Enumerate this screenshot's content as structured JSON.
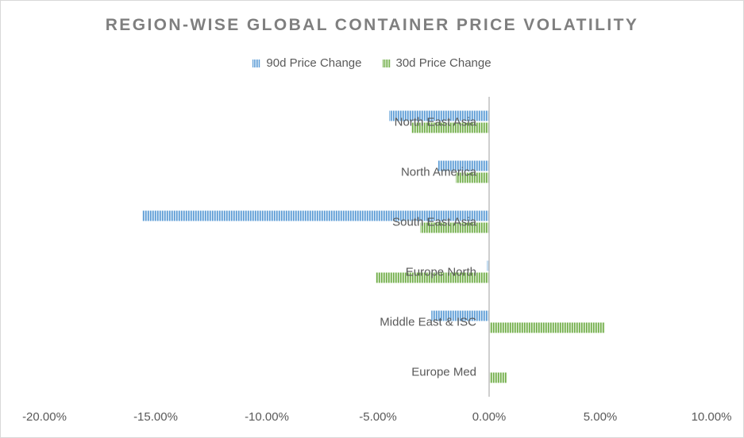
{
  "chart_data": {
    "type": "bar",
    "orientation": "horizontal",
    "title": "REGION-WISE GLOBAL CONTAINER PRICE VOLATILITY",
    "categories": [
      "North East Asia",
      "North America",
      "South East Asia",
      "Europe North",
      "Middle East & ISC",
      "Europe Med"
    ],
    "series": [
      {
        "name": "90d Price Change",
        "values": [
          -4.5,
          -2.3,
          -15.6,
          -0.1,
          -2.6,
          0.0
        ],
        "color": "#5b9bd5"
      },
      {
        "name": "30d Price Change",
        "values": [
          -3.5,
          -1.5,
          -3.1,
          -5.1,
          5.2,
          0.8
        ],
        "color": "#70ad47"
      }
    ],
    "xticks": [
      "-20.00%",
      "-15.00%",
      "-10.00%",
      "-5.00%",
      "0.00%",
      "5.00%",
      "10.00%"
    ],
    "xlim": [
      -20,
      10
    ],
    "grid": false,
    "legend_position": "top"
  }
}
